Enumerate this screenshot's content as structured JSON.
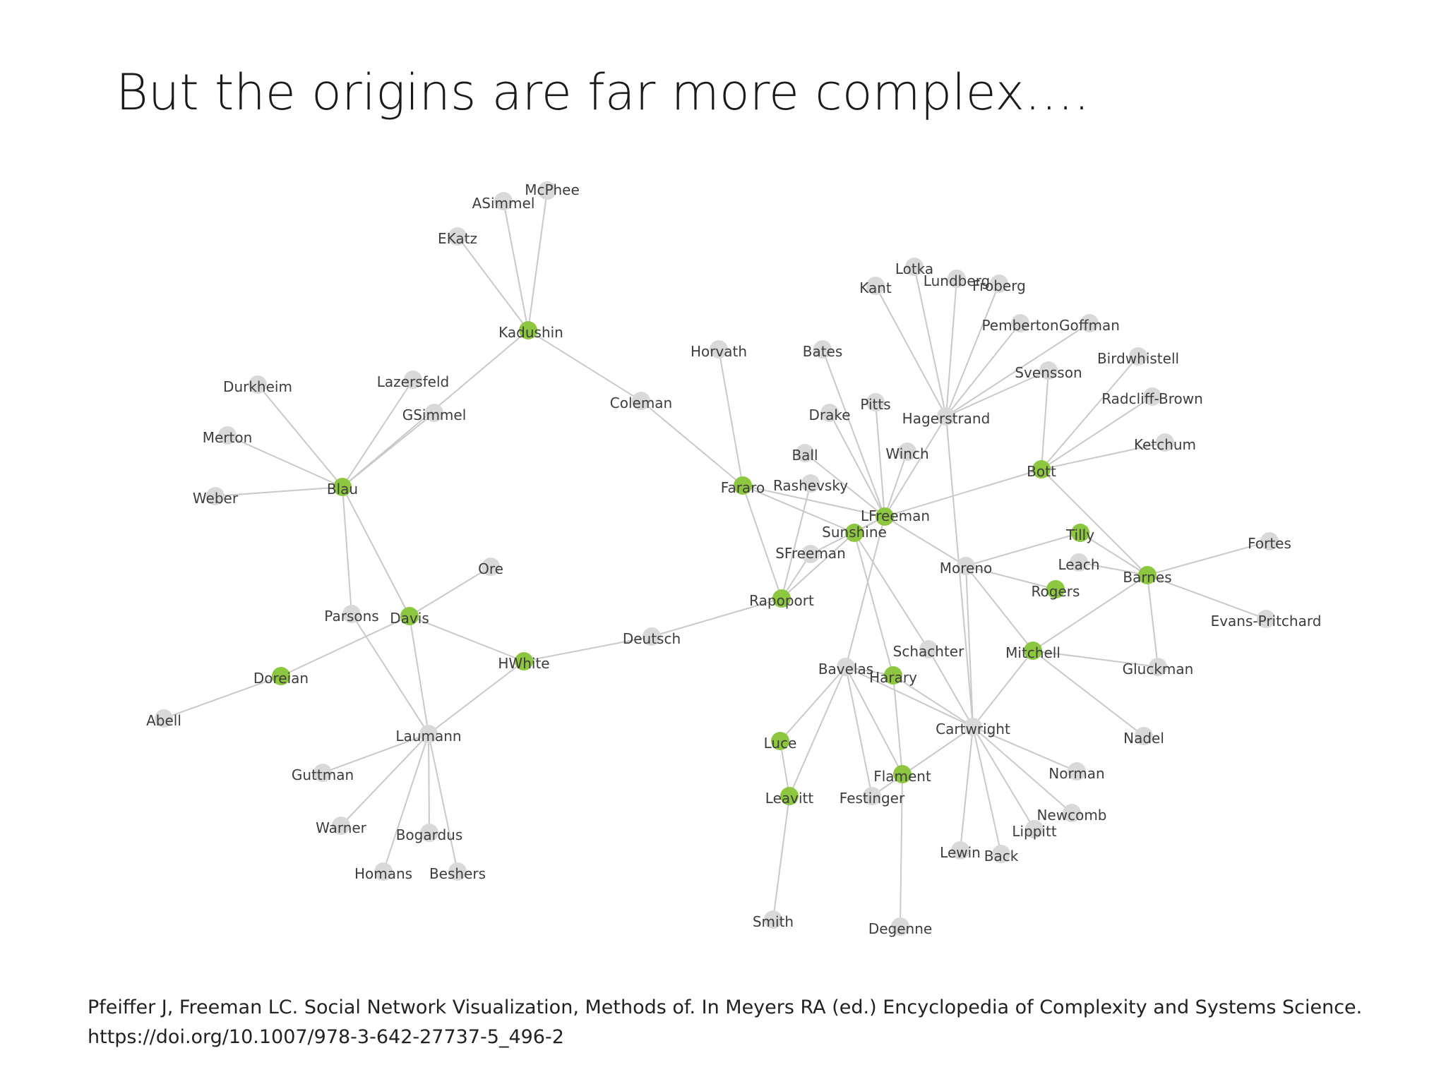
{
  "slide": {
    "title": "But the origins are far more complex….",
    "citation_line1": "Pfeiffer J, Freeman LC.  Social Network Visualization, Methods of. In Meyers RA (ed.) Encyclopedia of Complexity and Systems Science.",
    "citation_line2": "https://doi.org/10.1007/978-3-642-27737-5_496-2"
  },
  "colors": {
    "edge": "#c9c9c9",
    "node_grey": "#d9d9d9",
    "node_green": "#8dc63f",
    "label": "#3d3d3d"
  },
  "network": {
    "nodes": [
      {
        "id": "McPhee",
        "label": "McPhee",
        "highlight": false
      },
      {
        "id": "ASimmel",
        "label": "ASimmel",
        "highlight": false
      },
      {
        "id": "EKatz",
        "label": "EKatz",
        "highlight": false
      },
      {
        "id": "Kadushin",
        "label": "Kadushin",
        "highlight": true
      },
      {
        "id": "Lazersfeld",
        "label": "Lazersfeld",
        "highlight": false
      },
      {
        "id": "GSimmel",
        "label": "GSimmel",
        "highlight": false
      },
      {
        "id": "Durkheim",
        "label": "Durkheim",
        "highlight": false
      },
      {
        "id": "Merton",
        "label": "Merton",
        "highlight": false
      },
      {
        "id": "Weber",
        "label": "Weber",
        "highlight": false
      },
      {
        "id": "Blau",
        "label": "Blau",
        "highlight": true
      },
      {
        "id": "Coleman",
        "label": "Coleman",
        "highlight": false
      },
      {
        "id": "Horvath",
        "label": "Horvath",
        "highlight": false
      },
      {
        "id": "Bates",
        "label": "Bates",
        "highlight": false
      },
      {
        "id": "Kant",
        "label": "Kant",
        "highlight": false
      },
      {
        "id": "Lotka",
        "label": "Lotka",
        "highlight": false
      },
      {
        "id": "Lundberg",
        "label": "Lundberg",
        "highlight": false
      },
      {
        "id": "Froberg",
        "label": "Froberg",
        "highlight": false
      },
      {
        "id": "Pemberton",
        "label": "Pemberton",
        "highlight": false
      },
      {
        "id": "Goffman",
        "label": "Goffman",
        "highlight": false
      },
      {
        "id": "Birdwhistell",
        "label": "Birdwhistell",
        "highlight": false
      },
      {
        "id": "Svensson",
        "label": "Svensson",
        "highlight": false
      },
      {
        "id": "RadcliffBrown",
        "label": "Radcliff-Brown",
        "highlight": false
      },
      {
        "id": "Ketchum",
        "label": "Ketchum",
        "highlight": false
      },
      {
        "id": "Hagerstrand",
        "label": "Hagerstrand",
        "highlight": false
      },
      {
        "id": "Drake",
        "label": "Drake",
        "highlight": false
      },
      {
        "id": "Pitts",
        "label": "Pitts",
        "highlight": false
      },
      {
        "id": "Ball",
        "label": "Ball",
        "highlight": false
      },
      {
        "id": "Winch",
        "label": "Winch",
        "highlight": false
      },
      {
        "id": "Bott",
        "label": "Bott",
        "highlight": true
      },
      {
        "id": "Fararo",
        "label": "Fararo",
        "highlight": true
      },
      {
        "id": "Rashevsky",
        "label": "Rashevsky",
        "highlight": false
      },
      {
        "id": "LFreeman",
        "label": "LFreeman",
        "highlight": true
      },
      {
        "id": "Sunshine",
        "label": "Sunshine",
        "highlight": true
      },
      {
        "id": "SFreeman",
        "label": "SFreeman",
        "highlight": false
      },
      {
        "id": "Moreno",
        "label": "Moreno",
        "highlight": false
      },
      {
        "id": "Tilly",
        "label": "Tilly",
        "highlight": true
      },
      {
        "id": "Fortes",
        "label": "Fortes",
        "highlight": false
      },
      {
        "id": "Leach",
        "label": "Leach",
        "highlight": false
      },
      {
        "id": "Barnes",
        "label": "Barnes",
        "highlight": true
      },
      {
        "id": "Rogers",
        "label": "Rogers",
        "highlight": true
      },
      {
        "id": "EvansPritchard",
        "label": "Evans-Pritchard",
        "highlight": false
      },
      {
        "id": "Ore",
        "label": "Ore",
        "highlight": false
      },
      {
        "id": "Parsons",
        "label": "Parsons",
        "highlight": false
      },
      {
        "id": "Davis",
        "label": "Davis",
        "highlight": true
      },
      {
        "id": "Rapoport",
        "label": "Rapoport",
        "highlight": true
      },
      {
        "id": "Deutsch",
        "label": "Deutsch",
        "highlight": false
      },
      {
        "id": "HWhite",
        "label": "HWhite",
        "highlight": true
      },
      {
        "id": "Doreian",
        "label": "Doreian",
        "highlight": true
      },
      {
        "id": "Abell",
        "label": "Abell",
        "highlight": false
      },
      {
        "id": "Laumann",
        "label": "Laumann",
        "highlight": false
      },
      {
        "id": "Guttman",
        "label": "Guttman",
        "highlight": false
      },
      {
        "id": "Warner",
        "label": "Warner",
        "highlight": false
      },
      {
        "id": "Bogardus",
        "label": "Bogardus",
        "highlight": false
      },
      {
        "id": "Homans",
        "label": "Homans",
        "highlight": false
      },
      {
        "id": "Beshers",
        "label": "Beshers",
        "highlight": false
      },
      {
        "id": "Schachter",
        "label": "Schachter",
        "highlight": false
      },
      {
        "id": "Bavelas",
        "label": "Bavelas",
        "highlight": false
      },
      {
        "id": "Harary",
        "label": "Harary",
        "highlight": true
      },
      {
        "id": "Mitchell",
        "label": "Mitchell",
        "highlight": true
      },
      {
        "id": "Gluckman",
        "label": "Gluckman",
        "highlight": false
      },
      {
        "id": "Cartwright",
        "label": "Cartwright",
        "highlight": false
      },
      {
        "id": "Nadel",
        "label": "Nadel",
        "highlight": false
      },
      {
        "id": "Luce",
        "label": "Luce",
        "highlight": true
      },
      {
        "id": "Flament",
        "label": "Flament",
        "highlight": true
      },
      {
        "id": "Norman",
        "label": "Norman",
        "highlight": false
      },
      {
        "id": "Leavitt",
        "label": "Leavitt",
        "highlight": true
      },
      {
        "id": "Festinger",
        "label": "Festinger",
        "highlight": false
      },
      {
        "id": "Newcomb",
        "label": "Newcomb",
        "highlight": false
      },
      {
        "id": "Lippitt",
        "label": "Lippitt",
        "highlight": false
      },
      {
        "id": "Lewin",
        "label": "Lewin",
        "highlight": false
      },
      {
        "id": "Back",
        "label": "Back",
        "highlight": false
      },
      {
        "id": "Smith",
        "label": "Smith",
        "highlight": false
      },
      {
        "id": "Degenne",
        "label": "Degenne",
        "highlight": false
      }
    ],
    "edges": [
      [
        "McPhee",
        "Kadushin"
      ],
      [
        "ASimmel",
        "Kadushin"
      ],
      [
        "EKatz",
        "Kadushin"
      ],
      [
        "Kadushin",
        "Blau"
      ],
      [
        "Kadushin",
        "Coleman"
      ],
      [
        "Lazersfeld",
        "Blau"
      ],
      [
        "GSimmel",
        "Blau"
      ],
      [
        "Durkheim",
        "Blau"
      ],
      [
        "Merton",
        "Blau"
      ],
      [
        "Weber",
        "Blau"
      ],
      [
        "Blau",
        "Parsons"
      ],
      [
        "Blau",
        "Davis"
      ],
      [
        "Coleman",
        "Fararo"
      ],
      [
        "Horvath",
        "Fararo"
      ],
      [
        "Fararo",
        "Rapoport"
      ],
      [
        "Fararo",
        "LFreeman"
      ],
      [
        "Fararo",
        "Sunshine"
      ],
      [
        "Bates",
        "LFreeman"
      ],
      [
        "Drake",
        "LFreeman"
      ],
      [
        "Pitts",
        "LFreeman"
      ],
      [
        "Ball",
        "LFreeman"
      ],
      [
        "Winch",
        "LFreeman"
      ],
      [
        "Kant",
        "Hagerstrand"
      ],
      [
        "Lotka",
        "Hagerstrand"
      ],
      [
        "Lundberg",
        "Hagerstrand"
      ],
      [
        "Froberg",
        "Hagerstrand"
      ],
      [
        "Pemberton",
        "Hagerstrand"
      ],
      [
        "Goffman",
        "Hagerstrand"
      ],
      [
        "Svensson",
        "Hagerstrand"
      ],
      [
        "Hagerstrand",
        "LFreeman"
      ],
      [
        "Hagerstrand",
        "Cartwright"
      ],
      [
        "Birdwhistell",
        "Bott"
      ],
      [
        "RadcliffBrown",
        "Bott"
      ],
      [
        "Ketchum",
        "Bott"
      ],
      [
        "Svensson",
        "Bott"
      ],
      [
        "Bott",
        "LFreeman"
      ],
      [
        "Bott",
        "Barnes"
      ],
      [
        "LFreeman",
        "Sunshine"
      ],
      [
        "LFreeman",
        "SFreeman"
      ],
      [
        "LFreeman",
        "Moreno"
      ],
      [
        "LFreeman",
        "Bavelas"
      ],
      [
        "Rashevsky",
        "Rapoport"
      ],
      [
        "SFreeman",
        "Rapoport"
      ],
      [
        "Sunshine",
        "Rapoport"
      ],
      [
        "Sunshine",
        "Schachter"
      ],
      [
        "Sunshine",
        "Harary"
      ],
      [
        "Moreno",
        "Tilly"
      ],
      [
        "Moreno",
        "Rogers"
      ],
      [
        "Moreno",
        "Mitchell"
      ],
      [
        "Moreno",
        "Cartwright"
      ],
      [
        "Tilly",
        "Barnes"
      ],
      [
        "Leach",
        "Barnes"
      ],
      [
        "Fortes",
        "Barnes"
      ],
      [
        "EvansPritchard",
        "Barnes"
      ],
      [
        "Barnes",
        "Mitchell"
      ],
      [
        "Barnes",
        "Gluckman"
      ],
      [
        "Mitchell",
        "Gluckman"
      ],
      [
        "Mitchell",
        "Nadel"
      ],
      [
        "Mitchell",
        "Cartwright"
      ],
      [
        "Rapoport",
        "Deutsch"
      ],
      [
        "Deutsch",
        "HWhite"
      ],
      [
        "HWhite",
        "Davis"
      ],
      [
        "HWhite",
        "Laumann"
      ],
      [
        "Ore",
        "Davis"
      ],
      [
        "Davis",
        "Doreian"
      ],
      [
        "Doreian",
        "Abell"
      ],
      [
        "Davis",
        "Laumann"
      ],
      [
        "Parsons",
        "Laumann"
      ],
      [
        "Laumann",
        "Guttman"
      ],
      [
        "Laumann",
        "Warner"
      ],
      [
        "Laumann",
        "Bogardus"
      ],
      [
        "Laumann",
        "Homans"
      ],
      [
        "Laumann",
        "Beshers"
      ],
      [
        "Bavelas",
        "Luce"
      ],
      [
        "Bavelas",
        "Leavitt"
      ],
      [
        "Bavelas",
        "Harary"
      ],
      [
        "Bavelas",
        "Flament"
      ],
      [
        "Bavelas",
        "Festinger"
      ],
      [
        "Bavelas",
        "Cartwright"
      ],
      [
        "Harary",
        "Flament"
      ],
      [
        "Harary",
        "Cartwright"
      ],
      [
        "Schachter",
        "Cartwright"
      ],
      [
        "Luce",
        "Leavitt"
      ],
      [
        "Leavitt",
        "Smith"
      ],
      [
        "Flament",
        "Degenne"
      ],
      [
        "Festinger",
        "Cartwright"
      ],
      [
        "Cartwright",
        "Norman"
      ],
      [
        "Cartwright",
        "Newcomb"
      ],
      [
        "Cartwright",
        "Lippitt"
      ],
      [
        "Cartwright",
        "Lewin"
      ],
      [
        "Cartwright",
        "Back"
      ]
    ]
  }
}
